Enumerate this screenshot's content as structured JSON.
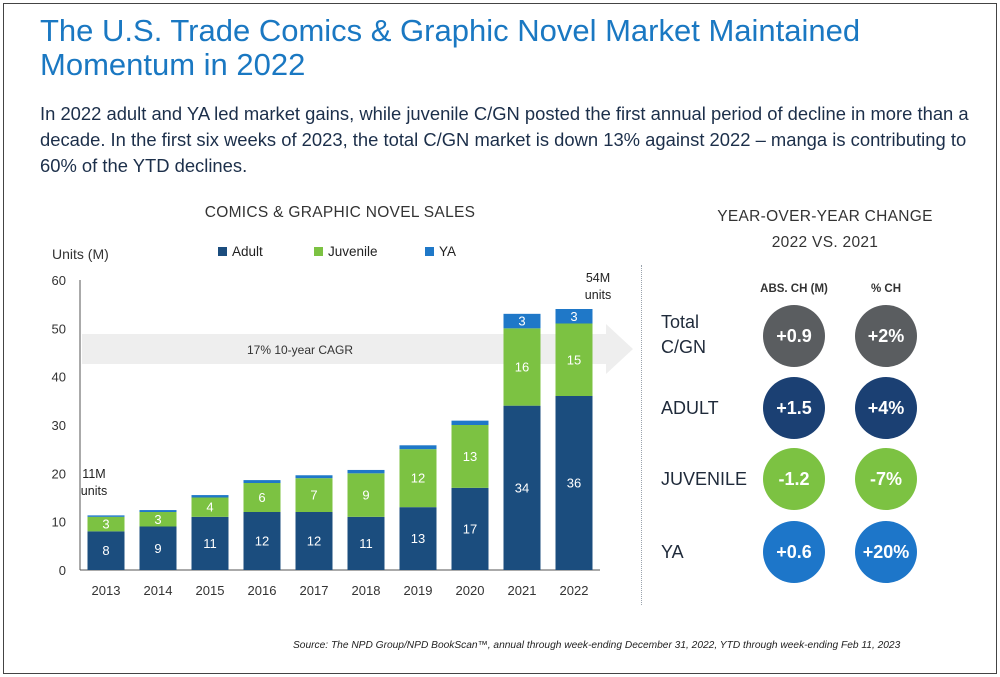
{
  "title": "The U.S. Trade Comics & Graphic Novel Market Maintained Momentum in 2022",
  "subtitle": "In 2022 adult and YA led market gains, while juvenile C/GN posted the first annual period of decline in more than a decade. In the first six weeks of 2023, the total C/GN market is down 13% against 2022 – manga is contributing to 60% of the YTD declines.",
  "chart_data": [
    {
      "type": "bar",
      "stacked": true,
      "title": "COMICS & GRAPHIC NOVEL SALES",
      "ylabel": "Units (M)",
      "xlabel": "",
      "ylim": [
        0,
        60
      ],
      "yticks": [
        0,
        10,
        20,
        30,
        40,
        50,
        60
      ],
      "categories": [
        "2013",
        "2014",
        "2015",
        "2016",
        "2017",
        "2018",
        "2019",
        "2020",
        "2021",
        "2022"
      ],
      "series": [
        {
          "name": "Adult",
          "color": "#1b4d7e",
          "values": [
            8,
            9,
            11,
            12,
            12,
            11,
            13,
            17,
            34,
            36
          ],
          "labels": [
            "8",
            "9",
            "11",
            "12",
            "12",
            "11",
            "13",
            "17",
            "34",
            "36"
          ]
        },
        {
          "name": "Juvenile",
          "color": "#7cc242",
          "values": [
            3,
            3,
            4,
            6,
            7,
            9,
            12,
            13,
            16,
            15
          ],
          "labels": [
            "3",
            "3",
            "4",
            "6",
            "7",
            "9",
            "12",
            "13",
            "16",
            "15"
          ]
        },
        {
          "name": "YA",
          "color": "#1f78c8",
          "values": [
            0.3,
            0.4,
            0.5,
            0.6,
            0.6,
            0.7,
            0.8,
            0.9,
            3,
            3
          ],
          "labels": [
            "",
            "",
            "",
            "",
            "",
            "",
            "",
            "",
            "3",
            "3"
          ]
        }
      ],
      "annotations": {
        "start_total": [
          "11M",
          "units"
        ],
        "end_total": [
          "54M",
          "units"
        ],
        "cagr": "17% 10-year CAGR"
      },
      "legend_position": "top",
      "grid": false
    },
    {
      "type": "table",
      "title_lines": [
        "YEAR-OVER-YEAR CHANGE",
        "2022 VS. 2021"
      ],
      "columns": [
        "ABS. CH (M)",
        "% CH"
      ],
      "rows": [
        {
          "label_lines": [
            "Total",
            "C/GN"
          ],
          "abs": "+0.9",
          "pct": "+2%",
          "color": "#5a5d60"
        },
        {
          "label_lines": [
            "ADULT"
          ],
          "abs": "+1.5",
          "pct": "+4%",
          "color": "#1b4073"
        },
        {
          "label_lines": [
            "JUVENILE"
          ],
          "abs": "-1.2",
          "pct": "-7%",
          "color": "#7cc242"
        },
        {
          "label_lines": [
            "YA"
          ],
          "abs": "+0.6",
          "pct": "+20%",
          "color": "#1d76c9"
        }
      ]
    }
  ],
  "source": "Source: The NPD Group/NPD BookScan™, annual through week-ending December 31, 2022, YTD through week-ending Feb 11, 2023"
}
